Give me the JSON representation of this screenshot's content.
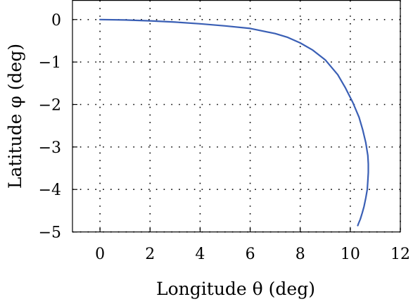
{
  "chart_data": {
    "type": "line",
    "title": "",
    "xlabel": "Longitude θ (deg)",
    "ylabel": "Latitude φ (deg)",
    "xlim": [
      -1.1,
      12
    ],
    "ylim": [
      -5,
      0.45
    ],
    "x_ticks": [
      0,
      2,
      4,
      6,
      8,
      10,
      12
    ],
    "x_tick_labels": [
      "0",
      "2",
      "4",
      "6",
      "8",
      "10",
      "12"
    ],
    "y_ticks": [
      0,
      -1,
      -2,
      -3,
      -4,
      -5
    ],
    "y_tick_labels": [
      "0",
      "−1",
      "−2",
      "−3",
      "−4",
      "−5"
    ],
    "grid": true,
    "grid_style": "dotted",
    "series_color": "#3a5fb5",
    "series": [
      {
        "x": [
          0,
          1,
          2,
          3,
          4,
          5,
          6,
          7,
          7.5,
          8,
          8.5,
          9,
          9.5,
          9.8,
          10.1,
          10.35,
          10.5,
          10.62,
          10.7,
          10.72,
          10.72,
          10.7,
          10.68,
          10.62,
          10.55,
          10.48,
          10.4,
          10.33,
          10.3
        ],
        "y": [
          0,
          -0.01,
          -0.03,
          -0.06,
          -0.1,
          -0.15,
          -0.21,
          -0.33,
          -0.42,
          -0.55,
          -0.72,
          -0.95,
          -1.3,
          -1.6,
          -1.95,
          -2.3,
          -2.6,
          -2.9,
          -3.2,
          -3.4,
          -3.6,
          -3.8,
          -4.0,
          -4.2,
          -4.4,
          -4.55,
          -4.7,
          -4.8,
          -4.85
        ]
      }
    ]
  }
}
